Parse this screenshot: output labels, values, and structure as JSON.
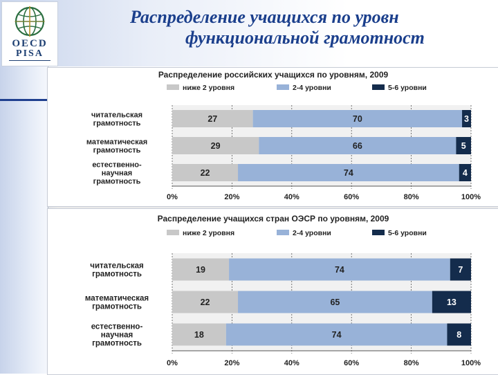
{
  "header": {
    "title_line1": "Распределение учащихся по уровн",
    "title_line2": "функциональной грамотност"
  },
  "logo": {
    "line1": "OECD",
    "line2": "PISA"
  },
  "colors": {
    "low": "#c8c8c8",
    "mid": "#98b2d8",
    "high": "#142c4c",
    "title_blue": "#1b3f8c"
  },
  "chart_data": [
    {
      "type": "bar",
      "orientation": "horizontal-stacked-percent",
      "title": "Распределение российских учащихся по уровням, 2009",
      "categories": [
        "читательская грамотность",
        "математическая грамотность",
        "естественно-научная грамотность"
      ],
      "category_lines": [
        [
          "читательская",
          "грамотность"
        ],
        [
          "математическая",
          "грамотность"
        ],
        [
          "естественно-",
          "научная",
          "грамотность"
        ]
      ],
      "series": [
        {
          "name": "ниже 2 уровня",
          "values": [
            27,
            29,
            22
          ]
        },
        {
          "name": "2-4 уровни",
          "values": [
            70,
            66,
            74
          ]
        },
        {
          "name": "5-6 уровни",
          "values": [
            3,
            5,
            4
          ]
        }
      ],
      "xlim": [
        0,
        100
      ],
      "xticks": [
        "0%",
        "20%",
        "40%",
        "60%",
        "80%",
        "100%"
      ],
      "legend": "top",
      "grid": true
    },
    {
      "type": "bar",
      "orientation": "horizontal-stacked-percent",
      "title": "Распределение учащихся  стран ОЭСР по уровням, 2009",
      "categories": [
        "читательская грамотность",
        "математическая грамотность",
        "естественно-научная грамотность"
      ],
      "category_lines": [
        [
          "читательская",
          "грамотность"
        ],
        [
          "математическая",
          "грамотность"
        ],
        [
          "естественно-",
          "научная",
          "грамотность"
        ]
      ],
      "series": [
        {
          "name": "ниже 2 уровня",
          "values": [
            19,
            22,
            18
          ]
        },
        {
          "name": "2-4 уровни",
          "values": [
            74,
            65,
            74
          ]
        },
        {
          "name": "5-6 уровни",
          "values": [
            7,
            13,
            8
          ]
        }
      ],
      "xlim": [
        0,
        100
      ],
      "xticks": [
        "0%",
        "20%",
        "40%",
        "60%",
        "80%",
        "100%"
      ],
      "legend": "top",
      "grid": true
    }
  ]
}
